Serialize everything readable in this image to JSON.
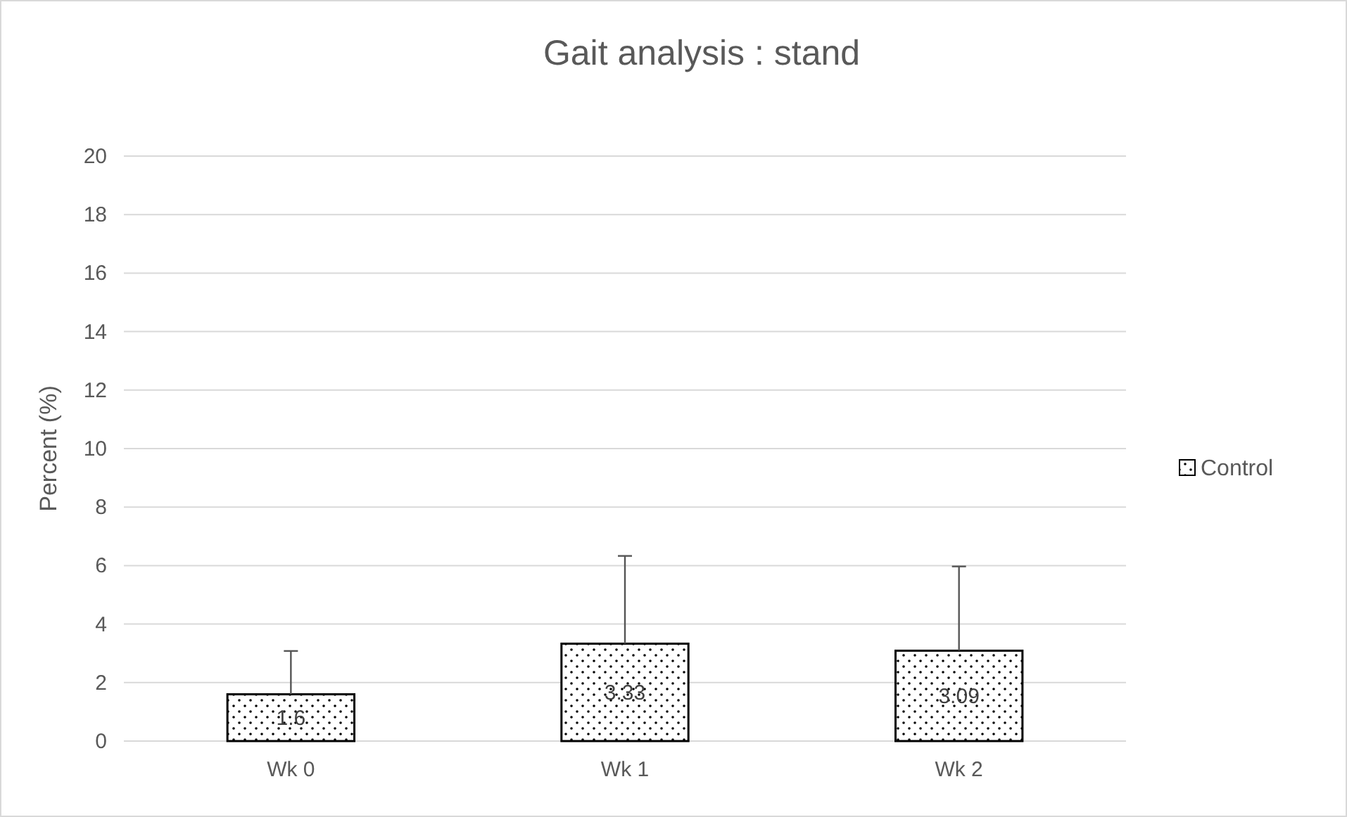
{
  "chart_data": {
    "type": "bar",
    "title": "Gait analysis : stand",
    "ylabel": "Percent (%)",
    "categories": [
      "Wk 0",
      "Wk 1",
      "Wk 2"
    ],
    "series": [
      {
        "name": "Control",
        "color": "#000000",
        "values": [
          1.6,
          3.33,
          3.09
        ],
        "errors": [
          [
            1.6,
            3.08
          ],
          [
            3.33,
            6.33
          ],
          [
            3.09,
            5.97
          ]
        ]
      }
    ],
    "ylim": [
      0,
      20
    ],
    "yticks": [
      0,
      2,
      4,
      6,
      8,
      10,
      12,
      14,
      16,
      18,
      20
    ],
    "grid": "y",
    "legend": "right",
    "data_labels": true
  }
}
